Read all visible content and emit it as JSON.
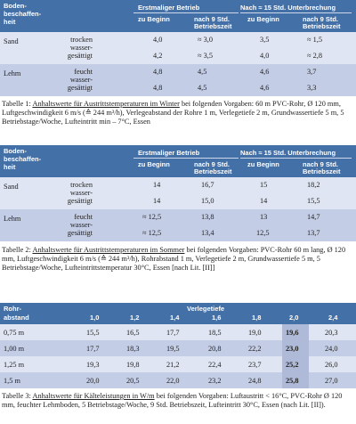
{
  "tables": [
    {
      "header": {
        "col1": [
          "Boden-",
          "beschaffen-",
          "heit"
        ],
        "group1": "Erstmaliger Betrieb",
        "group2": "Nach ≈ 15 Std. Unterbrechung",
        "sub_begin": "zu Beginn",
        "sub_after": [
          "nach 9 Std.",
          "Betriebszeit"
        ],
        "sub_begin2": "zu Beginn",
        "sub_after2": [
          "nach 9 Std.",
          "Betriebszeit"
        ]
      },
      "rows": [
        {
          "soil": "Sand",
          "cond": [
            "trocken",
            "wasser-",
            "gesättigt"
          ],
          "vals": [
            [
              "4,0",
              "≈ 3,0",
              "3,5",
              "≈ 1,5"
            ],
            [
              "4,2",
              "≈ 3,5",
              "4,0",
              "≈ 2,8"
            ]
          ]
        },
        {
          "soil": "Lehm",
          "cond": [
            "feucht",
            "wasser-",
            "gesättigt"
          ],
          "vals": [
            [
              "4,8",
              "4,5",
              "4,6",
              "3,7"
            ],
            [
              "4,8",
              "4,5",
              "4,6",
              "3,3"
            ]
          ]
        }
      ],
      "caption_prefix": "Tabelle 1: ",
      "caption_title": "Anhaltswerte für Austrittstemperaturen im Winter",
      "caption_rest": " bei folgenden Vorgaben: 60 m PVC-Rohr, Ø 120 mm, Luftgeschwindigkeit 6 m/s (≙ 244 m³/h), Verlegeabstand der Rohre 1 m, Verlegetiefe 2 m, Grundwassertiefe 5 m, 5 Betriebstage/Woche, Lufteintritt min – 7°C, Essen"
    },
    {
      "header": {
        "col1": [
          "Boden-",
          "beschaffen-",
          "heit"
        ],
        "group1": "Erstmaliger Betrieb",
        "group2": "Nach ≈ 15 Std. Unterbrechung",
        "sub_begin": "zu Beginn",
        "sub_after": [
          "nach 9 Std.",
          "Betriebszeit"
        ],
        "sub_begin2": "zu Beginn",
        "sub_after2": [
          "nach 9 Std.",
          "Betriebszeit"
        ]
      },
      "rows": [
        {
          "soil": "Sand",
          "cond": [
            "trocken",
            "wasser-",
            "gesättigt"
          ],
          "vals": [
            [
              "14",
              "16,7",
              "15",
              "18,2"
            ],
            [
              "14",
              "15,0",
              "14",
              "15,5"
            ]
          ]
        },
        {
          "soil": "Lehm",
          "cond": [
            "feucht",
            "wasser-",
            "gesättigt"
          ],
          "vals": [
            [
              "≈ 12,5",
              "13,8",
              "13",
              "14,7"
            ],
            [
              "≈ 12,5",
              "13,4",
              "12,5",
              "13,7"
            ]
          ]
        }
      ],
      "caption_prefix": "Tabelle 2: ",
      "caption_title": "Anhaltswerte für Austrittstemperaturen im Sommer",
      "caption_rest": " bei folgenden Vorgaben: PVC-Rohr 60 m lang, Ø 120 mm, Luftgeschwindigkeit 6 m/s (≙ 244 m³/h), Rohrabstand 1 m, Verlegetiefe 2 m, Grundwassertiefe 5 m, 5 Betriebstage/Woche, Lufteintrittstemperatur 30°C, Essen [nach Lit. [II]]"
    }
  ],
  "table3": {
    "col1": [
      "Rohr-",
      "abstand"
    ],
    "group": "Verlegetiefe",
    "depths": [
      "1,0",
      "1,2",
      "1,4",
      "1,6",
      "1,8",
      "2,0",
      "2,4"
    ],
    "rows": [
      {
        "label": "0,75 m",
        "vals": [
          "15,5",
          "16,5",
          "17,7",
          "18,5",
          "19,0",
          "19,6",
          "20,3"
        ]
      },
      {
        "label": "1,00 m",
        "vals": [
          "17,7",
          "18,3",
          "19,5",
          "20,8",
          "22,2",
          "23,0",
          "24,0"
        ]
      },
      {
        "label": "1,25 m",
        "vals": [
          "19,3",
          "19,8",
          "21,2",
          "22,4",
          "23,7",
          "25,2",
          "26,0"
        ]
      },
      {
        "label": "1,5 m",
        "vals": [
          "20,0",
          "20,5",
          "22,0",
          "23,2",
          "24,8",
          "25,8",
          "27,0"
        ]
      }
    ],
    "caption_prefix": "Tabelle 3: ",
    "caption_title": "Anhaltswerte für Kälteleistungen in W/m",
    "caption_rest": " bei folgenden Vorgaben: Luftaustritt < 16°C, PVC-Rohr Ø 120 mm, feuchter Lehmboden, 5 Betriebstage/Woche, 9 Std. Betriebszeit, Lufteintritt 30°C, Essen (nach Lit. [II])."
  }
}
